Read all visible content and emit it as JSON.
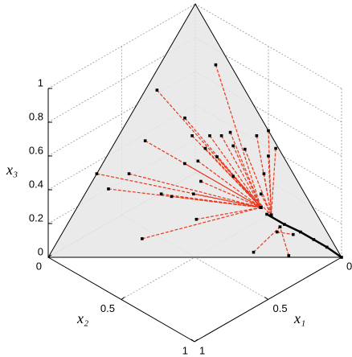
{
  "chart_data": {
    "type": "simplex",
    "x1_label": "x₁",
    "x2_label": "x₂",
    "x3_label": "x₃",
    "x1lim": [
      0,
      1
    ],
    "x2lim": [
      0,
      1
    ],
    "x3lim": [
      0,
      1
    ],
    "x1ticks": [
      0,
      0.5,
      1
    ],
    "x2ticks": [
      0,
      0.5,
      1
    ],
    "x3ticks": [
      0,
      0.2,
      0.4,
      0.6,
      0.8,
      1
    ],
    "grid": true,
    "line_color": "#e8381c",
    "marker_color": "#000000",
    "surface_color": "#e6e6e6",
    "trajectories": [
      {
        "x1": [
          0.05,
          0.18
        ],
        "x2": [
          0.19,
          0.63
        ],
        "x3": [
          0.76,
          0.2
        ]
      },
      {
        "x1": [
          0.3,
          0.18
        ],
        "x2": [
          0.04,
          0.63
        ],
        "x3": [
          0.66,
          0.2
        ]
      },
      {
        "x1": [
          0.26,
          0.18
        ],
        "x2": [
          0.19,
          0.63
        ],
        "x3": [
          0.55,
          0.2
        ]
      },
      {
        "x1": [
          0.21,
          0.18
        ],
        "x2": [
          0.31,
          0.63
        ],
        "x3": [
          0.48,
          0.2
        ]
      },
      {
        "x1": [
          0.17,
          0.18
        ],
        "x2": [
          0.35,
          0.63
        ],
        "x3": [
          0.48,
          0.2
        ]
      },
      {
        "x1": [
          0.13,
          0.18
        ],
        "x2": [
          0.37,
          0.63
        ],
        "x3": [
          0.49,
          0.2
        ]
      },
      {
        "x1": [
          0.15,
          0.18
        ],
        "x2": [
          0.41,
          0.63
        ],
        "x3": [
          0.44,
          0.2
        ]
      },
      {
        "x1": [
          0.25,
          0.18
        ],
        "x2": [
          0.32,
          0.63
        ],
        "x3": [
          0.43,
          0.2
        ]
      },
      {
        "x1": [
          0.23,
          0.18
        ],
        "x2": [
          0.38,
          0.63
        ],
        "x3": [
          0.4,
          0.2
        ]
      },
      {
        "x1": [
          0.3,
          0.18
        ],
        "x2": [
          0.32,
          0.63
        ],
        "x3": [
          0.38,
          0.2
        ]
      },
      {
        "x1": [
          0.35,
          0.18
        ],
        "x2": [
          0.28,
          0.63
        ],
        "x3": [
          0.37,
          0.2
        ]
      },
      {
        "x1": [
          0.44,
          0.18
        ],
        "x2": [
          0.1,
          0.63
        ],
        "x3": [
          0.46,
          0.2
        ]
      },
      {
        "x1": [
          0.56,
          0.18
        ],
        "x2": [
          0.11,
          0.63
        ],
        "x3": [
          0.33,
          0.2
        ]
      },
      {
        "x1": [
          0.67,
          0.18
        ],
        "x2": [
          0.0,
          0.63
        ],
        "x3": [
          0.33,
          0.2
        ]
      },
      {
        "x1": [
          0.66,
          0.18
        ],
        "x2": [
          0.07,
          0.63
        ],
        "x3": [
          0.27,
          0.2
        ]
      },
      {
        "x1": [
          0.64,
          0.18
        ],
        "x2": [
          0.28,
          0.63
        ],
        "x3": [
          0.07,
          0.2
        ]
      },
      {
        "x1": [
          0.42,
          0.18
        ],
        "x2": [
          0.43,
          0.63
        ],
        "x3": [
          0.15,
          0.2
        ]
      },
      {
        "x1": [
          0.38,
          0.18
        ],
        "x2": [
          0.37,
          0.63
        ],
        "x3": [
          0.25,
          0.2
        ]
      },
      {
        "x1": [
          0.49,
          0.18
        ],
        "x2": [
          0.26,
          0.63
        ],
        "x3": [
          0.25,
          0.2
        ]
      },
      {
        "x1": [
          0.46,
          0.18
        ],
        "x2": [
          0.3,
          0.63
        ],
        "x3": [
          0.24,
          0.2
        ]
      },
      {
        "x1": [
          0.33,
          0.18
        ],
        "x2": [
          0.37,
          0.63
        ],
        "x3": [
          0.3,
          0.2
        ]
      },
      {
        "x1": [
          0.27,
          0.18
        ],
        "x2": [
          0.25,
          0.63
        ],
        "x3": [
          0.48,
          0.2
        ]
      },
      {
        "x1": [
          0.0,
          0.16
        ],
        "x2": [
          0.5,
          0.68
        ],
        "x3": [
          0.5,
          0.17
        ]
      },
      {
        "x1": [
          0.05,
          0.16
        ],
        "x2": [
          0.47,
          0.68
        ],
        "x3": [
          0.48,
          0.17
        ]
      },
      {
        "x1": [
          0.01,
          0.16
        ],
        "x2": [
          0.56,
          0.68
        ],
        "x3": [
          0.43,
          0.17
        ]
      },
      {
        "x1": [
          0.05,
          0.16
        ],
        "x2": [
          0.55,
          0.68
        ],
        "x3": [
          0.4,
          0.17
        ]
      },
      {
        "x1": [
          0.1,
          0.16
        ],
        "x2": [
          0.57,
          0.68
        ],
        "x3": [
          0.33,
          0.17
        ]
      },
      {
        "x1": [
          0.15,
          0.16
        ],
        "x2": [
          0.6,
          0.68
        ],
        "x3": [
          0.25,
          0.17
        ]
      },
      {
        "x1": [
          0.12,
          0.16
        ],
        "x2": [
          0.46,
          0.68
        ],
        "x3": [
          0.43,
          0.17
        ]
      },
      {
        "x1": [
          0.21,
          0.16
        ],
        "x2": [
          0.47,
          0.68
        ],
        "x3": [
          0.32,
          0.17
        ]
      },
      {
        "x1": [
          0.18,
          0.15
        ],
        "x2": [
          0.82,
          0.73
        ],
        "x3": [
          0.01,
          0.12
        ]
      },
      {
        "x1": [
          0.29,
          0.15
        ],
        "x2": [
          0.69,
          0.73
        ],
        "x3": [
          0.02,
          0.12
        ]
      },
      {
        "x1": [
          0.17,
          0.12
        ],
        "x2": [
          0.73,
          0.79
        ],
        "x3": [
          0.1,
          0.09
        ]
      }
    ],
    "attractor": {
      "x1": [
        0.17,
        0.13,
        0.09,
        0.06,
        0.03,
        0.0
      ],
      "x2": [
        0.66,
        0.74,
        0.81,
        0.87,
        0.93,
        1.0
      ],
      "x3": [
        0.17,
        0.13,
        0.1,
        0.07,
        0.04,
        0.0
      ]
    }
  }
}
